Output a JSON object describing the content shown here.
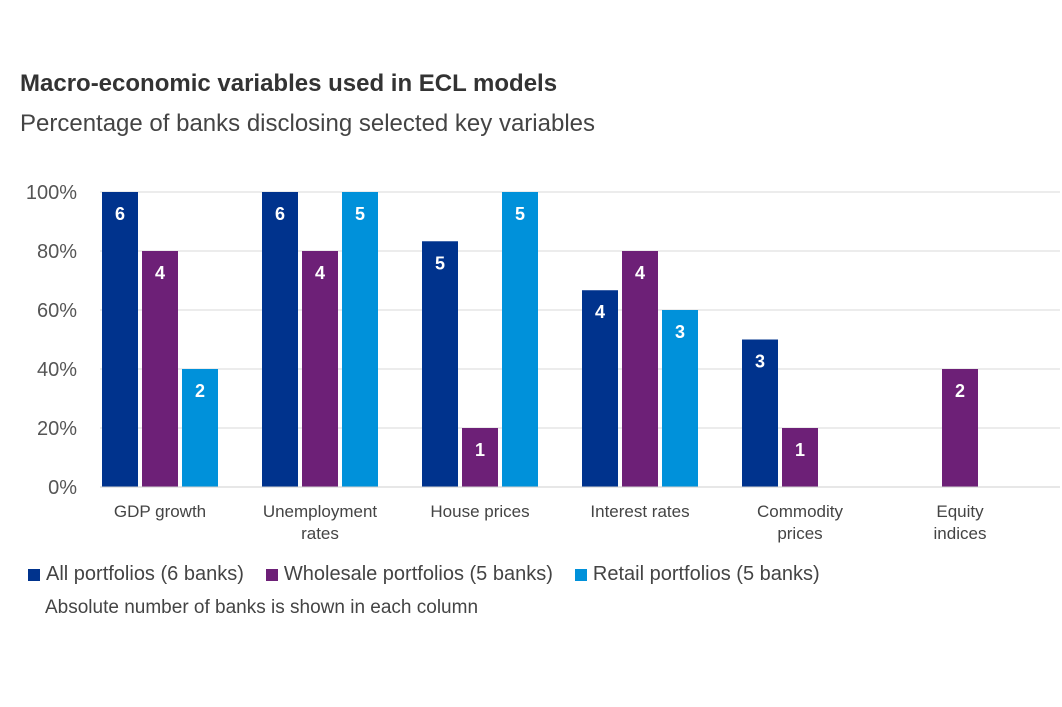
{
  "chart_data": {
    "type": "bar",
    "title": "Macro-economic variables used in ECL models",
    "subtitle": "Percentage of banks disclosing selected key variables",
    "categories": [
      [
        "GDP growth"
      ],
      [
        "Unemployment",
        "rates"
      ],
      [
        "House prices"
      ],
      [
        "Interest rates"
      ],
      [
        "Commodity",
        "prices"
      ],
      [
        "Equity",
        "indices"
      ]
    ],
    "ylim": [
      0,
      100
    ],
    "yticks": [
      "0%",
      "20%",
      "40%",
      "60%",
      "80%",
      "100%"
    ],
    "grid": true,
    "legend_position": "bottom-left",
    "series": [
      {
        "name": "All portfolios (6 banks)",
        "color": "#00338D",
        "values": [
          100,
          100,
          83.3,
          66.7,
          50,
          0
        ],
        "labels": [
          "6",
          "6",
          "5",
          "4",
          "3",
          null
        ]
      },
      {
        "name": "Wholesale portfolios (5 banks)",
        "color": "#6D2077",
        "values": [
          80,
          80,
          20,
          80,
          20,
          40
        ],
        "labels": [
          "4",
          "4",
          "1",
          "4",
          "1",
          "2"
        ]
      },
      {
        "name": "Retail portfolios (5 banks)",
        "color": "#0091DA",
        "values": [
          40,
          100,
          100,
          60,
          0,
          0
        ],
        "labels": [
          "2",
          "5",
          "5",
          "3",
          null,
          null
        ]
      }
    ],
    "note": "Absolute number of banks is shown in each column"
  }
}
